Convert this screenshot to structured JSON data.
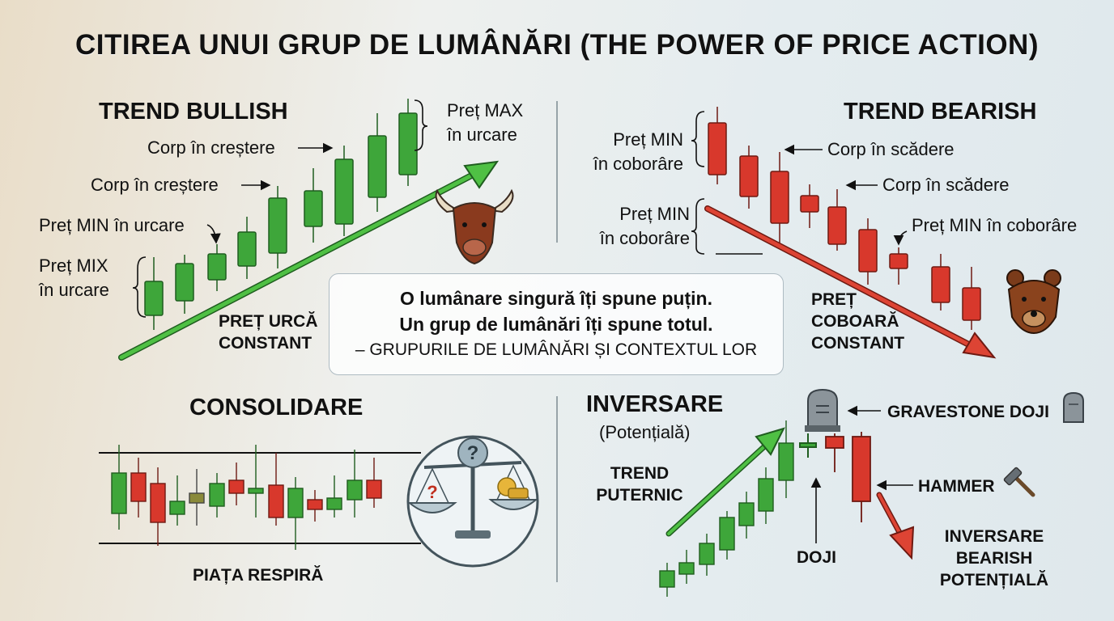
{
  "title": "CITIREA UNUI GRUP DE LUMÂNĂRI (THE POWER OF PRICE ACTION)",
  "colors": {
    "bull": "#3ea63a",
    "bear": "#d8382c",
    "text": "#111111"
  },
  "bullish": {
    "heading": "TREND BULLISH",
    "max_label_1": "Preț MAX",
    "max_label_2": "în urcare",
    "body_up_1": "Corp în creștere",
    "body_up_2": "Corp în creștere",
    "min_label": "Preț MIN în urcare",
    "mix_label_1": "Preț MIX",
    "mix_label_2": "în urcare",
    "trend_text_1": "PREȚ URCĂ",
    "trend_text_2": "CONSTANT",
    "icon": "bull-head-icon"
  },
  "bearish": {
    "heading": "TREND BEARISH",
    "min_label_1": "Preț MIN",
    "min_label_2": "în coborâre",
    "body_down_1": "Corp în scădere",
    "body_down_2": "Corp în scădere",
    "min2_label_1": "Preț MIN",
    "min2_label_2": "în coborâre",
    "min3_label": "Preț MIN în coborâre",
    "trend_text_1": "PREȚ",
    "trend_text_2": "COBOARĂ",
    "trend_text_3": "CONSTANT",
    "icon": "bear-head-icon"
  },
  "quote": {
    "line1": "O lumânare singură îți spune puțin.",
    "line2": "Un grup de lumânări îți spune totul.",
    "line3": "– GRUPURILE DE LUMÂNĂRI ȘI CONTEXTUL LOR"
  },
  "consolidation": {
    "heading": "CONSOLIDARE",
    "caption": "PIAȚA RESPIRĂ",
    "icon": "balance-scale-icon"
  },
  "reversal": {
    "heading": "INVERSARE",
    "subheading": "(Potențială)",
    "strong_trend_1": "TREND",
    "strong_trend_2": "PUTERNIC",
    "gravestone": "GRAVESTONE DOJI",
    "hammer": "HAMMER",
    "doji": "DOJI",
    "result_1": "INVERSARE",
    "result_2": "BEARISH",
    "result_3": "POTENȚIALĂ",
    "icons": [
      "gravestone-icon",
      "hammer-icon"
    ]
  }
}
